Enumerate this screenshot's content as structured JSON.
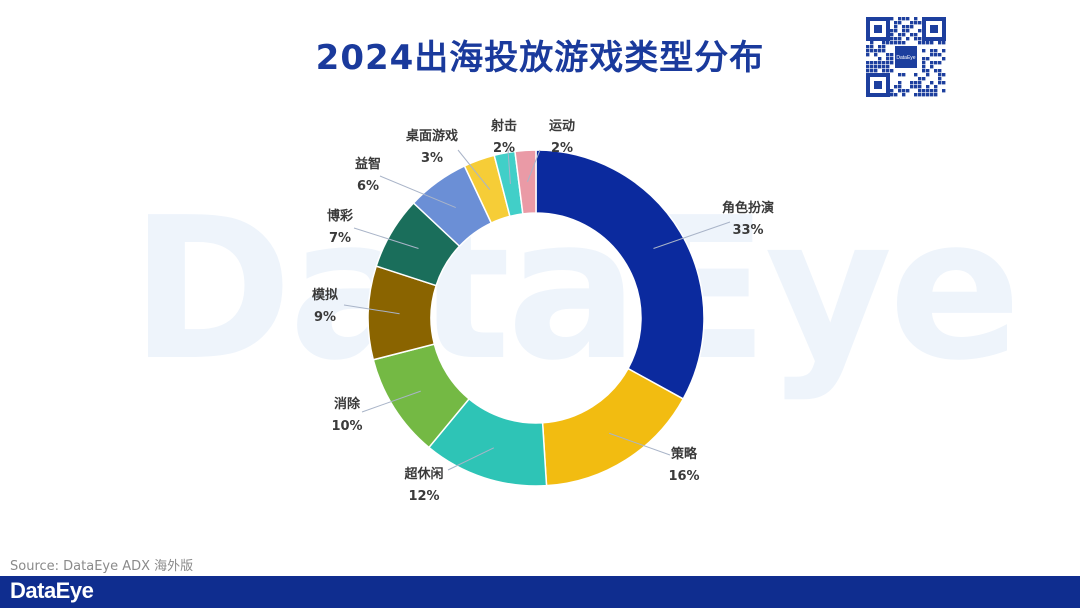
{
  "title": "2024出海投放游戏类型分布",
  "watermark": "DataEye",
  "qr_logo": "DataEye",
  "source": "Source: DataEye ADX 海外版",
  "footer_logo": "DataEye",
  "chart_data": {
    "type": "pie",
    "donut": true,
    "title": "2024出海投放游戏类型分布",
    "series": [
      {
        "category": "角色扮演",
        "value": 33,
        "label": "33%",
        "color": "#0b2a9e"
      },
      {
        "category": "策略",
        "value": 16,
        "label": "16%",
        "color": "#f2bc11"
      },
      {
        "category": "超休闲",
        "value": 12,
        "label": "12%",
        "color": "#2ec4b6"
      },
      {
        "category": "消除",
        "value": 10,
        "label": "10%",
        "color": "#74b944"
      },
      {
        "category": "模拟",
        "value": 9,
        "label": "9%",
        "color": "#8a6400"
      },
      {
        "category": "博彩",
        "value": 7,
        "label": "7%",
        "color": "#1a6e5b"
      },
      {
        "category": "益智",
        "value": 6,
        "label": "6%",
        "color": "#6b8fd6"
      },
      {
        "category": "桌面游戏",
        "value": 3,
        "label": "3%",
        "color": "#f6cd37"
      },
      {
        "category": "射击",
        "value": 2,
        "label": "2%",
        "color": "#41cfc8"
      },
      {
        "category": "运动",
        "value": 2,
        "label": "2%",
        "color": "#ea9aa6"
      }
    ]
  }
}
